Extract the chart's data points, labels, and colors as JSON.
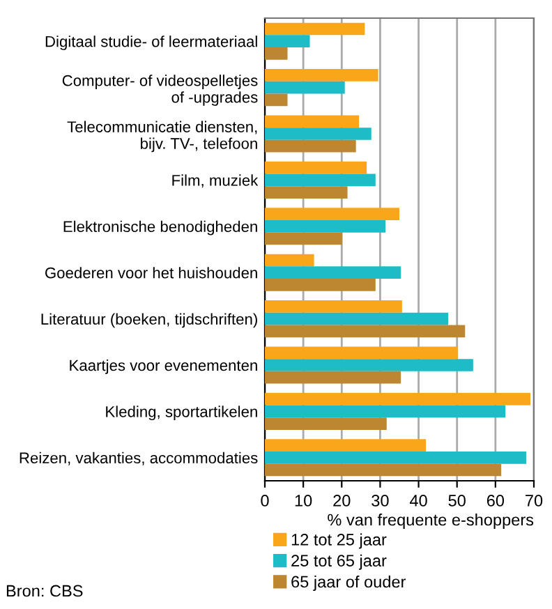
{
  "chart_data": {
    "type": "bar",
    "orientation": "horizontal",
    "xlabel": "% van frequente e-shoppers",
    "categories": [
      "Digitaal studie- of leermateriaal",
      "Computer- of videospelletjes\nof -upgrades",
      "Telecommunicatie diensten,\nbijv. TV-, telefoon",
      "Film, muziek",
      "Elektronische benodigheden",
      "Goederen voor het huishouden",
      "Literatuur (boeken, tijdschriften)",
      "Kaartjes voor evenementen",
      "Kleding, sportartikelen",
      "Reizen, vakanties, accommodaties"
    ],
    "series": [
      {
        "name": "12 tot 25 jaar",
        "color": "#f9a61a",
        "values": [
          26,
          29.5,
          24.5,
          26.5,
          35,
          12.8,
          35.7,
          50.2,
          69.1,
          41.9
        ]
      },
      {
        "name": "25 tot 65 jaar",
        "color": "#1dbcc6",
        "values": [
          11.7,
          20.8,
          27.7,
          28.8,
          31.4,
          35.4,
          47.7,
          54.2,
          62.6,
          68
        ]
      },
      {
        "name": "65 jaar of ouder",
        "color": "#bd8732",
        "values": [
          5.9,
          5.9,
          23.7,
          21.5,
          20.1,
          28.8,
          52.1,
          35.4,
          31.7,
          61.5
        ]
      }
    ],
    "xlim": [
      0,
      70
    ],
    "xticks": [
      0,
      10,
      20,
      30,
      40,
      50,
      60,
      70
    ],
    "grid": "x",
    "legend": "bottom",
    "annotations": [
      "Bron: CBS"
    ]
  }
}
